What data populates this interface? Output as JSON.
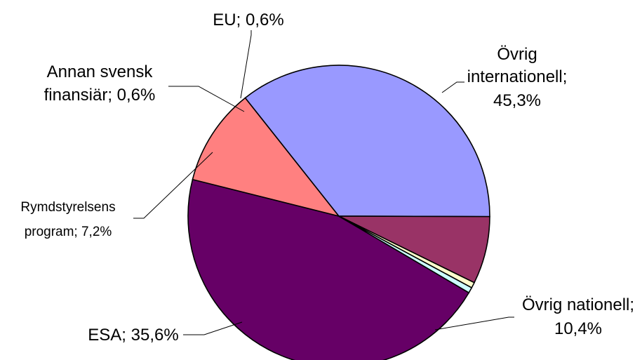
{
  "chart_data": {
    "type": "pie",
    "title": "",
    "slices": [
      {
        "label": "Övrig internationell",
        "value": 45.3,
        "label_lines": [
          "Övrig",
          "internationell;",
          "45,3%"
        ],
        "color": "#660066"
      },
      {
        "label": "Övrig nationell",
        "value": 10.4,
        "label_lines": [
          "Övrig nationell;",
          "10,4%"
        ],
        "color": "#FF8080"
      },
      {
        "label": "ESA",
        "value": 35.6,
        "label_lines": [
          "ESA; 35,6%"
        ],
        "color": "#9999FF"
      },
      {
        "label": "Rymdstyrelsens program",
        "value": 7.2,
        "label_lines": [
          "Rymdstyrelsens",
          "program; 7,2%"
        ],
        "color": "#993366"
      },
      {
        "label": "Annan svensk finansiär",
        "value": 0.6,
        "label_lines": [
          "Annan svensk",
          "finansiär; 0,6%"
        ],
        "color": "#FFFFCC"
      },
      {
        "label": "EU",
        "value": 0.6,
        "label_lines": [
          "EU; 0,6%"
        ],
        "color": "#CCFFFF"
      }
    ]
  }
}
